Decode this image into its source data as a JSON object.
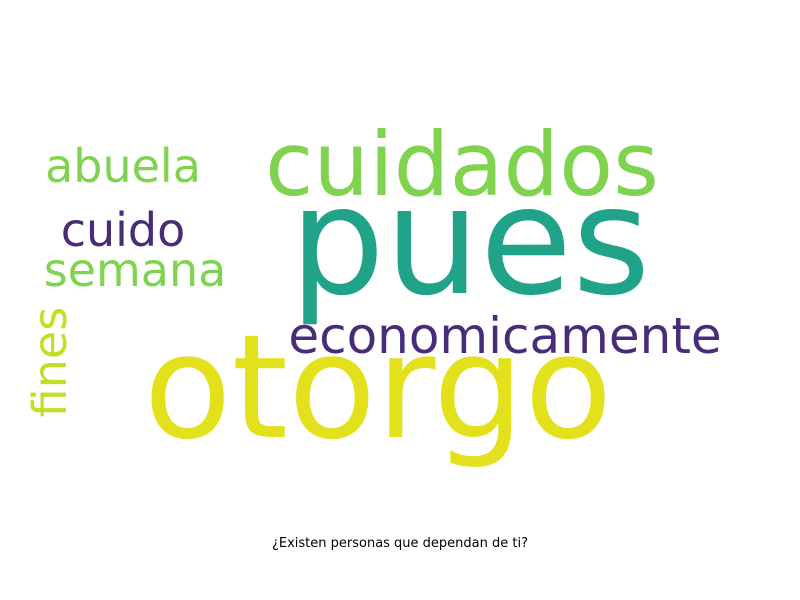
{
  "wordcloud": {
    "words": [
      {
        "text": "pues",
        "color": "#21a38a"
      },
      {
        "text": "otorgo",
        "color": "#e2e11b"
      },
      {
        "text": "cuidados",
        "color": "#7fd34e"
      },
      {
        "text": "economicamente",
        "color": "#472c7a"
      },
      {
        "text": "abuela",
        "color": "#7fd34e"
      },
      {
        "text": "cuido",
        "color": "#472c7a"
      },
      {
        "text": "semana",
        "color": "#7fd34e"
      },
      {
        "text": "fines",
        "color": "#c2df23"
      }
    ]
  },
  "caption": "¿Existen personas que dependan de ti?"
}
